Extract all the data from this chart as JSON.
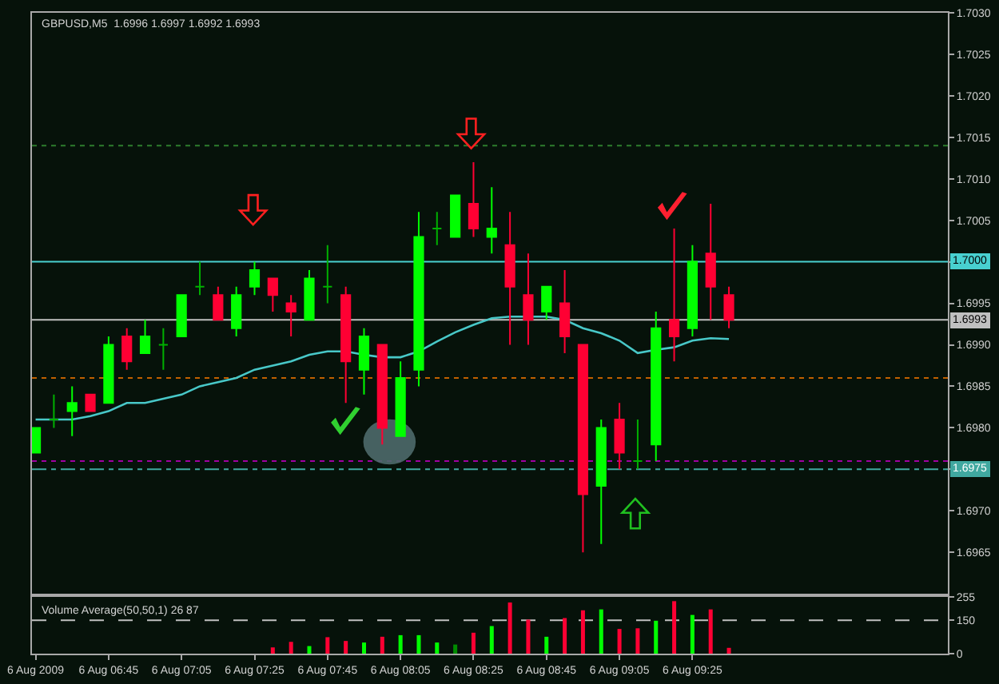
{
  "chart_data": [
    {
      "type": "candlestick",
      "title": "GBPUSD,M5  1.6996 1.6997 1.6992 1.6993",
      "x": [
        "2009-08-06T06:25",
        "2009-08-06T06:30",
        "2009-08-06T06:35",
        "2009-08-06T06:40",
        "2009-08-06T06:45",
        "2009-08-06T06:50",
        "2009-08-06T06:55",
        "2009-08-06T07:00",
        "2009-08-06T07:05",
        "2009-08-06T07:10",
        "2009-08-06T07:15",
        "2009-08-06T07:20",
        "2009-08-06T07:25",
        "2009-08-06T07:30",
        "2009-08-06T07:35",
        "2009-08-06T07:40",
        "2009-08-06T07:45",
        "2009-08-06T07:50",
        "2009-08-06T07:55",
        "2009-08-06T08:00",
        "2009-08-06T08:05",
        "2009-08-06T08:10",
        "2009-08-06T08:15",
        "2009-08-06T08:20",
        "2009-08-06T08:25",
        "2009-08-06T08:30",
        "2009-08-06T08:35",
        "2009-08-06T08:40",
        "2009-08-06T08:45",
        "2009-08-06T08:50",
        "2009-08-06T08:55",
        "2009-08-06T09:00",
        "2009-08-06T09:05",
        "2009-08-06T09:10",
        "2009-08-06T09:15",
        "2009-08-06T09:20",
        "2009-08-06T09:25",
        "2009-08-06T09:30",
        "2009-08-06T09:35"
      ],
      "ohlc": [
        [
          1.6977,
          1.698,
          1.6977,
          1.698
        ],
        [
          1.6981,
          1.6984,
          1.698,
          1.6981
        ],
        [
          1.6982,
          1.6985,
          1.6979,
          1.6983
        ],
        [
          1.6984,
          1.6984,
          1.6982,
          1.6982
        ],
        [
          1.6983,
          1.6991,
          1.6983,
          1.699
        ],
        [
          1.6991,
          1.6992,
          1.6987,
          1.6988
        ],
        [
          1.6989,
          1.6993,
          1.6989,
          1.6991
        ],
        [
          1.699,
          1.6992,
          1.6987,
          1.699
        ],
        [
          1.6991,
          1.6996,
          1.6991,
          1.6996
        ],
        [
          1.6997,
          1.7,
          1.6996,
          1.6997
        ],
        [
          1.6996,
          1.6997,
          1.6993,
          1.6993
        ],
        [
          1.6992,
          1.6997,
          1.6991,
          1.6996
        ],
        [
          1.6997,
          1.7,
          1.6996,
          1.6999
        ],
        [
          1.6998,
          1.6998,
          1.6994,
          1.6996
        ],
        [
          1.6995,
          1.6996,
          1.6991,
          1.6994
        ],
        [
          1.6993,
          1.6999,
          1.6993,
          1.6998
        ],
        [
          1.6997,
          1.7002,
          1.6995,
          1.6997
        ],
        [
          1.6996,
          1.6997,
          1.6983,
          1.6988
        ],
        [
          1.6987,
          1.6992,
          1.6984,
          1.6991
        ],
        [
          1.699,
          1.699,
          1.6978,
          1.698
        ],
        [
          1.6979,
          1.6988,
          1.6979,
          1.6986
        ],
        [
          1.6987,
          1.7006,
          1.6985,
          1.7003
        ],
        [
          1.7004,
          1.7006,
          1.7002,
          1.7004
        ],
        [
          1.7003,
          1.7008,
          1.7003,
          1.7008
        ],
        [
          1.7007,
          1.7012,
          1.7003,
          1.7004
        ],
        [
          1.7003,
          1.7009,
          1.7001,
          1.7004
        ],
        [
          1.7002,
          1.7006,
          1.699,
          1.6997
        ],
        [
          1.6996,
          1.7001,
          1.699,
          1.6993
        ],
        [
          1.6994,
          1.6997,
          1.6993,
          1.6997
        ],
        [
          1.6995,
          1.6999,
          1.6989,
          1.6991
        ],
        [
          1.699,
          1.699,
          1.6965,
          1.6972
        ],
        [
          1.6973,
          1.6981,
          1.6966,
          1.698
        ],
        [
          1.6981,
          1.6983,
          1.6975,
          1.6977
        ],
        [
          1.6976,
          1.6981,
          1.6975,
          1.6976
        ],
        [
          1.6978,
          1.6994,
          1.6976,
          1.6992
        ],
        [
          1.6993,
          1.7004,
          1.6988,
          1.6991
        ],
        [
          1.6992,
          1.7002,
          1.6991,
          1.7
        ],
        [
          1.7001,
          1.7007,
          1.6993,
          1.6997
        ],
        [
          1.6996,
          1.6997,
          1.6992,
          1.6993
        ]
      ],
      "colors": [
        "#00ff00",
        "#00b000",
        "#00ff00",
        "#ff0033",
        "#00ff00",
        "#ff0033",
        "#00ff00",
        "#00b000",
        "#00ff00",
        "#00b000",
        "#ff0033",
        "#00ff00",
        "#00ff00",
        "#ff0033",
        "#ff0033",
        "#00ff00",
        "#00b000",
        "#ff0033",
        "#00ff00",
        "#ff0033",
        "#00ff00",
        "#00ff00",
        "#00b000",
        "#00ff00",
        "#ff0033",
        "#00ff00",
        "#ff0033",
        "#ff0033",
        "#00ff00",
        "#ff0033",
        "#ff0033",
        "#00ff00",
        "#ff0033",
        "#00b000",
        "#00ff00",
        "#ff0033",
        "#00ff00",
        "#ff0033",
        "#ff0033"
      ],
      "series": [
        {
          "type": "line",
          "color": "#48c8c8",
          "values": [
            1.6981,
            1.6981,
            1.6981,
            1.69814,
            1.6982,
            1.6983,
            1.6983,
            1.69835,
            1.6984,
            1.6985,
            1.69855,
            1.6986,
            1.6987,
            1.69875,
            1.6988,
            1.69888,
            1.69892,
            1.69892,
            1.69888,
            1.69885,
            1.69885,
            1.69892,
            1.69904,
            1.69915,
            1.69924,
            1.69932,
            1.69934,
            1.69934,
            1.69934,
            1.6993,
            1.6992,
            1.69914,
            1.69905,
            1.6989,
            1.69894,
            1.69897,
            1.69905,
            1.69908,
            1.69907
          ]
        }
      ],
      "xlim": [
        "2009-08-06T06:24",
        "2009-08-06T10:35"
      ],
      "ylim": [
        1.696,
        1.703
      ],
      "yticks": [
        {
          "value": 1.6965,
          "label": "1.6965"
        },
        {
          "value": 1.697,
          "label": "1.6970"
        },
        {
          "value": 1.6975,
          "label": null
        },
        {
          "value": 1.698,
          "label": "1.6980"
        },
        {
          "value": 1.6985,
          "label": "1.6985"
        },
        {
          "value": 1.699,
          "label": "1.6990"
        },
        {
          "value": 1.6995,
          "label": "1.6995"
        },
        {
          "value": 1.7,
          "label": null
        },
        {
          "value": 1.7005,
          "label": "1.7005"
        },
        {
          "value": 1.701,
          "label": "1.7010"
        },
        {
          "value": 1.7015,
          "label": "1.7015"
        },
        {
          "value": 1.702,
          "label": "1.7020"
        },
        {
          "value": 1.7025,
          "label": "1.7025"
        },
        {
          "value": 1.703,
          "label": "1.7030"
        }
      ],
      "tick_labels": "y",
      "ref_lines": [
        {
          "axis": "y",
          "value": 1.7014,
          "color": "#2e7d2e",
          "line_style": "dotted"
        },
        {
          "axis": "y",
          "value": 1.7,
          "label": "1.7000",
          "color": "#48d0d0",
          "line_style": "solid"
        },
        {
          "axis": "y",
          "value": 1.6993,
          "label": "1.6993",
          "color": "#c0c0c0",
          "line_style": "solid"
        },
        {
          "axis": "y",
          "value": 1.6986,
          "color": "#c06000",
          "line_style": "dotted"
        },
        {
          "axis": "y",
          "value": 1.6976,
          "color": "#a000a0",
          "line_style": "dotted"
        },
        {
          "axis": "y",
          "value": 1.6975,
          "label": "1.6975",
          "color": "#40a8a0",
          "line_style": "dashdot"
        }
      ]
    },
    {
      "type": "bar",
      "title": "Volume Average(50,50,1) 26 87",
      "x": [
        "2009-08-06T07:30",
        "2009-08-06T07:35",
        "2009-08-06T07:40",
        "2009-08-06T07:45",
        "2009-08-06T07:50",
        "2009-08-06T07:55",
        "2009-08-06T08:00",
        "2009-08-06T08:05",
        "2009-08-06T08:10",
        "2009-08-06T08:15",
        "2009-08-06T08:20",
        "2009-08-06T08:25",
        "2009-08-06T08:30",
        "2009-08-06T08:35",
        "2009-08-06T08:40",
        "2009-08-06T08:45",
        "2009-08-06T08:50",
        "2009-08-06T08:55",
        "2009-08-06T09:00",
        "2009-08-06T09:05",
        "2009-08-06T09:10",
        "2009-08-06T09:15",
        "2009-08-06T09:20",
        "2009-08-06T09:25",
        "2009-08-06T09:30",
        "2009-08-06T09:35"
      ],
      "values": [
        28,
        53,
        34,
        74,
        57,
        50,
        76,
        83,
        83,
        50,
        41,
        94,
        124,
        230,
        153,
        76,
        160,
        195,
        199,
        111,
        114,
        148,
        236,
        174,
        199,
        26
      ],
      "colors": [
        "#ff0033",
        "#ff0033",
        "#00ff00",
        "#ff0033",
        "#ff0033",
        "#00ff00",
        "#ff0033",
        "#00ff00",
        "#00ff00",
        "#00ff00",
        "#008c00",
        "#ff0033",
        "#00ff00",
        "#ff0033",
        "#ff0033",
        "#00ff00",
        "#ff0033",
        "#ff0033",
        "#00ff00",
        "#ff0033",
        "#ff0033",
        "#00ff00",
        "#ff0033",
        "#00ff00",
        "#ff0033",
        "#ff0033"
      ],
      "xlim": [
        "2009-08-06T06:24",
        "2009-08-06T10:35"
      ],
      "xticks": [
        {
          "value": "2009-08-06T06:25",
          "label": "6 Aug 2009"
        },
        {
          "value": "2009-08-06T06:45",
          "label": "6 Aug 06:45"
        },
        {
          "value": "2009-08-06T07:05",
          "label": "6 Aug 07:05"
        },
        {
          "value": "2009-08-06T07:25",
          "label": "6 Aug 07:25"
        },
        {
          "value": "2009-08-06T07:45",
          "label": "6 Aug 07:45"
        },
        {
          "value": "2009-08-06T08:05",
          "label": "6 Aug 08:05"
        },
        {
          "value": "2009-08-06T08:25",
          "label": "6 Aug 08:25"
        },
        {
          "value": "2009-08-06T08:45",
          "label": "6 Aug 08:45"
        },
        {
          "value": "2009-08-06T09:05",
          "label": "6 Aug 09:05"
        },
        {
          "value": "2009-08-06T09:25",
          "label": "6 Aug 09:25"
        }
      ],
      "ylim": [
        0,
        255
      ],
      "yticks": [
        0,
        150,
        255
      ],
      "ref_lines": [
        {
          "axis": "y",
          "value": 150,
          "color": "#c0c0c0",
          "line_style": "dashed"
        }
      ]
    }
  ]
}
